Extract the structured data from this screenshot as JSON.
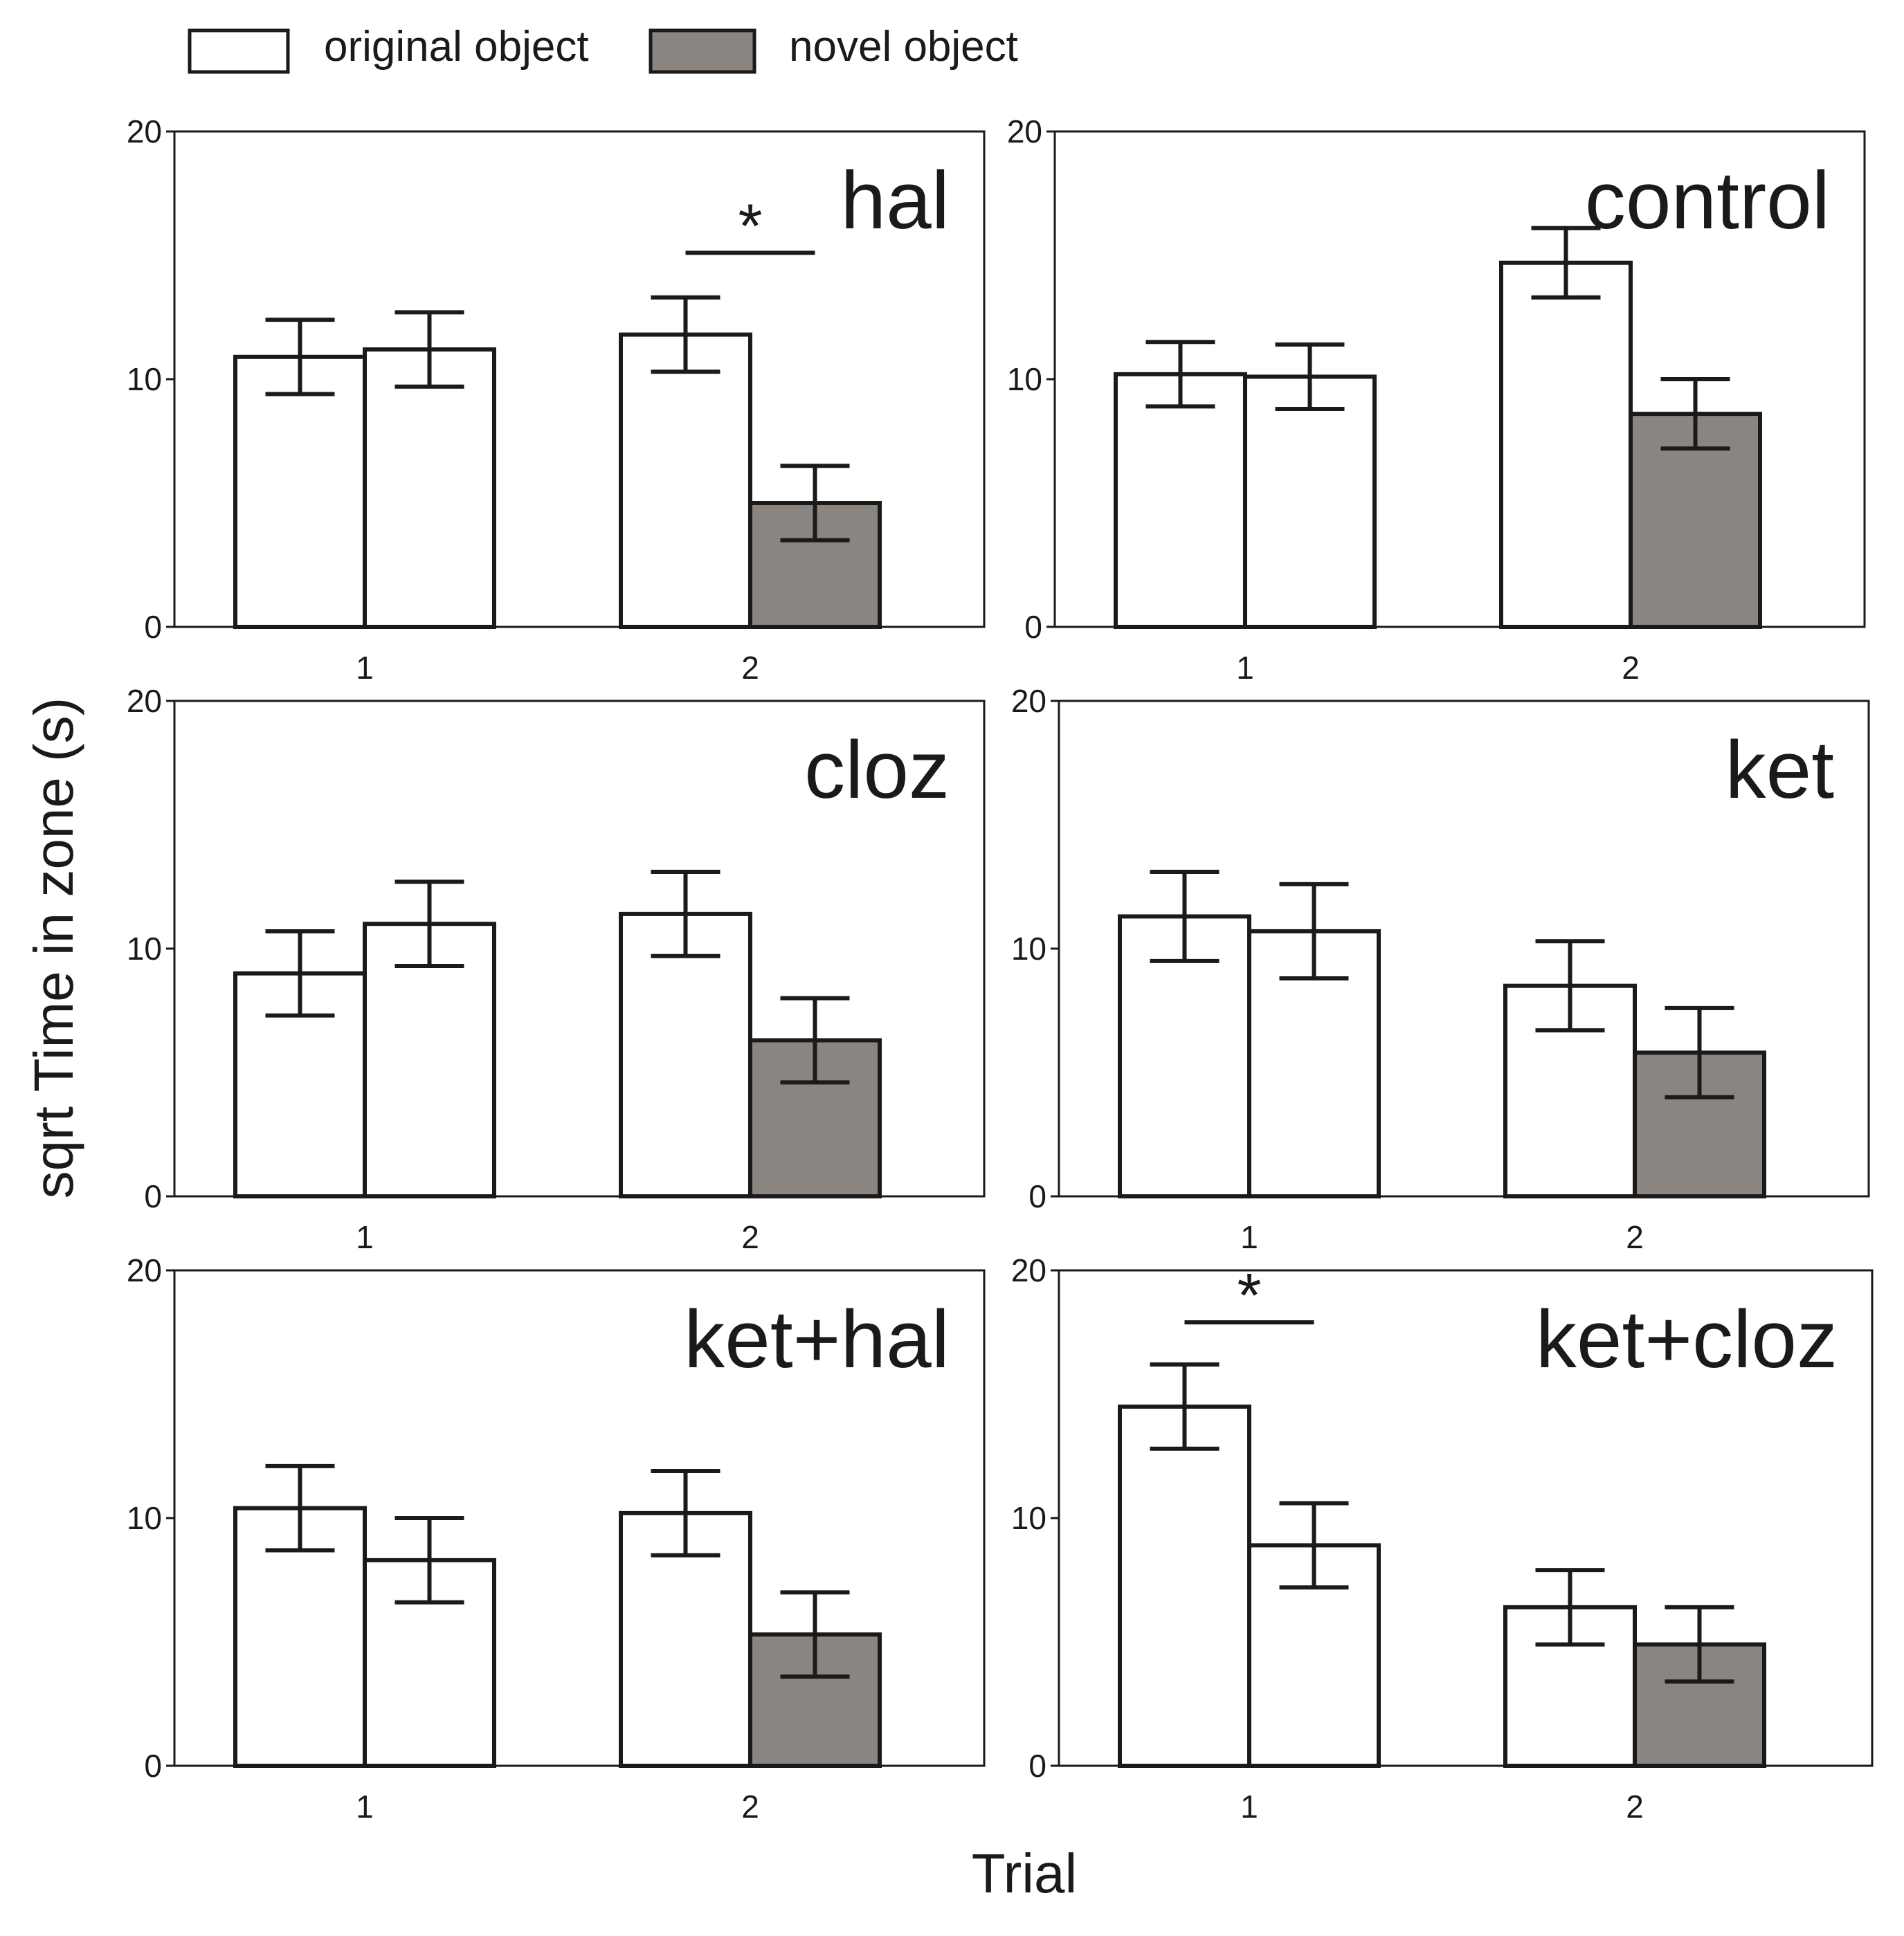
{
  "chart_data": {
    "type": "bar",
    "ylabel": "sqrt Time in zone (s)",
    "xlabel": "Trial",
    "ylim": [
      0,
      20
    ],
    "yticks": [
      "0",
      "10",
      "20"
    ],
    "categories": [
      "1",
      "2"
    ],
    "legend": {
      "placement": "top-left",
      "entries": [
        {
          "name": "original object",
          "color": "#ffffff"
        },
        {
          "name": "novel object",
          "color": "#8a8580"
        }
      ]
    },
    "colors": {
      "white": "#ffffff",
      "gray": "#8a8580",
      "stroke": "#1a1a1a"
    },
    "panels": [
      {
        "title": "hal",
        "bars": [
          {
            "trial": "1",
            "value": 10.9,
            "err": 1.5,
            "fill": "white"
          },
          {
            "trial": "1",
            "value": 11.2,
            "err": 1.5,
            "fill": "white"
          },
          {
            "trial": "2",
            "value": 11.8,
            "err": 1.5,
            "fill": "white"
          },
          {
            "trial": "2",
            "value": 5.0,
            "err": 1.5,
            "fill": "gray"
          }
        ],
        "significance": {
          "trial": "2",
          "label": "*",
          "y": 15.1
        }
      },
      {
        "title": "control",
        "bars": [
          {
            "trial": "1",
            "value": 10.2,
            "err": 1.3,
            "fill": "white"
          },
          {
            "trial": "1",
            "value": 10.1,
            "err": 1.3,
            "fill": "white"
          },
          {
            "trial": "2",
            "value": 14.7,
            "err": 1.4,
            "fill": "white"
          },
          {
            "trial": "2",
            "value": 8.6,
            "err": 1.4,
            "fill": "gray"
          }
        ]
      },
      {
        "title": "cloz",
        "bars": [
          {
            "trial": "1",
            "value": 9.0,
            "err": 1.7,
            "fill": "white"
          },
          {
            "trial": "1",
            "value": 11.0,
            "err": 1.7,
            "fill": "white"
          },
          {
            "trial": "2",
            "value": 11.4,
            "err": 1.7,
            "fill": "white"
          },
          {
            "trial": "2",
            "value": 6.3,
            "err": 1.7,
            "fill": "gray"
          }
        ]
      },
      {
        "title": "ket",
        "bars": [
          {
            "trial": "1",
            "value": 11.3,
            "err": 1.8,
            "fill": "white"
          },
          {
            "trial": "1",
            "value": 10.7,
            "err": 1.9,
            "fill": "white"
          },
          {
            "trial": "2",
            "value": 8.5,
            "err": 1.8,
            "fill": "white"
          },
          {
            "trial": "2",
            "value": 5.8,
            "err": 1.8,
            "fill": "gray"
          }
        ]
      },
      {
        "title": "ket+hal",
        "bars": [
          {
            "trial": "1",
            "value": 10.4,
            "err": 1.7,
            "fill": "white"
          },
          {
            "trial": "1",
            "value": 8.3,
            "err": 1.7,
            "fill": "white"
          },
          {
            "trial": "2",
            "value": 10.2,
            "err": 1.7,
            "fill": "white"
          },
          {
            "trial": "2",
            "value": 5.3,
            "err": 1.7,
            "fill": "gray"
          }
        ]
      },
      {
        "title": "ket+cloz",
        "bars": [
          {
            "trial": "1",
            "value": 14.5,
            "err": 1.7,
            "fill": "white"
          },
          {
            "trial": "1",
            "value": 8.9,
            "err": 1.7,
            "fill": "white"
          },
          {
            "trial": "2",
            "value": 6.4,
            "err": 1.5,
            "fill": "white"
          },
          {
            "trial": "2",
            "value": 4.9,
            "err": 1.5,
            "fill": "gray"
          }
        ],
        "significance": {
          "trial": "1",
          "label": "*",
          "y": 17.9
        }
      }
    ]
  }
}
